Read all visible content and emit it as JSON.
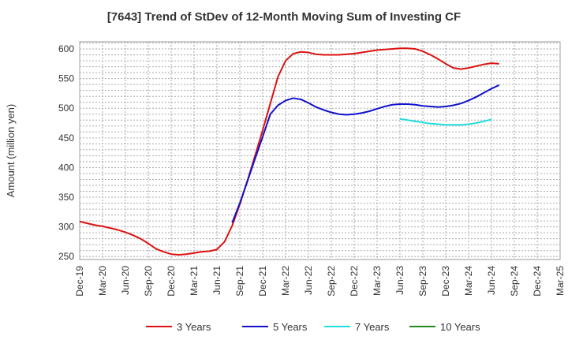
{
  "chart_data": {
    "type": "line",
    "title": "[7643]  Trend of StDev of 12-Month Moving Sum of Investing CF",
    "xlabel": "",
    "ylabel": "Amount (million yen)",
    "ylim": [
      245,
      612
    ],
    "yticks": [
      250,
      300,
      350,
      400,
      450,
      500,
      550,
      600
    ],
    "xlim": [
      "2019-12",
      "2025-03"
    ],
    "xticks": [
      "Dec-19",
      "Mar-20",
      "Jun-20",
      "Sep-20",
      "Dec-20",
      "Mar-21",
      "Jun-21",
      "Sep-21",
      "Dec-21",
      "Mar-22",
      "Jun-22",
      "Sep-22",
      "Dec-22",
      "Mar-23",
      "Jun-23",
      "Sep-23",
      "Dec-23",
      "Mar-24",
      "Jun-24",
      "Sep-24",
      "Dec-24",
      "Mar-25"
    ],
    "grid": true,
    "legend_position": "bottom",
    "series": [
      {
        "name": "3 Years",
        "color": "#dd1111",
        "points": [
          [
            "2019-12",
            309
          ],
          [
            "2020-01",
            306
          ],
          [
            "2020-02",
            303
          ],
          [
            "2020-03",
            301
          ],
          [
            "2020-04",
            298
          ],
          [
            "2020-05",
            295
          ],
          [
            "2020-06",
            291
          ],
          [
            "2020-07",
            286
          ],
          [
            "2020-08",
            280
          ],
          [
            "2020-09",
            272
          ],
          [
            "2020-10",
            263
          ],
          [
            "2020-11",
            258
          ],
          [
            "2020-12",
            254
          ],
          [
            "2021-01",
            253
          ],
          [
            "2021-02",
            254
          ],
          [
            "2021-03",
            256
          ],
          [
            "2021-04",
            258
          ],
          [
            "2021-05",
            259
          ],
          [
            "2021-06",
            262
          ],
          [
            "2021-07",
            275
          ],
          [
            "2021-08",
            302
          ],
          [
            "2021-09",
            338
          ],
          [
            "2021-10",
            378
          ],
          [
            "2021-11",
            420
          ],
          [
            "2021-12",
            463
          ],
          [
            "2022-01",
            508
          ],
          [
            "2022-02",
            553
          ],
          [
            "2022-03",
            580
          ],
          [
            "2022-04",
            592
          ],
          [
            "2022-05",
            595
          ],
          [
            "2022-06",
            594
          ],
          [
            "2022-07",
            591
          ],
          [
            "2022-08",
            590
          ],
          [
            "2022-09",
            590
          ],
          [
            "2022-10",
            590
          ],
          [
            "2022-11",
            591
          ],
          [
            "2022-12",
            592
          ],
          [
            "2023-01",
            594
          ],
          [
            "2023-02",
            596
          ],
          [
            "2023-03",
            598
          ],
          [
            "2023-04",
            599
          ],
          [
            "2023-05",
            600
          ],
          [
            "2023-06",
            601
          ],
          [
            "2023-07",
            601
          ],
          [
            "2023-08",
            600
          ],
          [
            "2023-09",
            596
          ],
          [
            "2023-10",
            590
          ],
          [
            "2023-11",
            583
          ],
          [
            "2023-12",
            575
          ],
          [
            "2024-01",
            568
          ],
          [
            "2024-02",
            566
          ],
          [
            "2024-03",
            568
          ],
          [
            "2024-04",
            571
          ],
          [
            "2024-05",
            574
          ],
          [
            "2024-06",
            576
          ],
          [
            "2024-07",
            575
          ]
        ]
      },
      {
        "name": "5 Years",
        "color": "#1111cc",
        "points": [
          [
            "2021-08",
            307
          ],
          [
            "2021-09",
            340
          ],
          [
            "2021-10",
            377
          ],
          [
            "2021-11",
            415
          ],
          [
            "2021-12",
            452
          ],
          [
            "2022-01",
            490
          ],
          [
            "2022-02",
            505
          ],
          [
            "2022-03",
            513
          ],
          [
            "2022-04",
            517
          ],
          [
            "2022-05",
            515
          ],
          [
            "2022-06",
            509
          ],
          [
            "2022-07",
            502
          ],
          [
            "2022-08",
            497
          ],
          [
            "2022-09",
            493
          ],
          [
            "2022-10",
            490
          ],
          [
            "2022-11",
            489
          ],
          [
            "2022-12",
            490
          ],
          [
            "2023-01",
            492
          ],
          [
            "2023-02",
            495
          ],
          [
            "2023-03",
            499
          ],
          [
            "2023-04",
            503
          ],
          [
            "2023-05",
            506
          ],
          [
            "2023-06",
            507
          ],
          [
            "2023-07",
            507
          ],
          [
            "2023-08",
            506
          ],
          [
            "2023-09",
            504
          ],
          [
            "2023-10",
            503
          ],
          [
            "2023-11",
            502
          ],
          [
            "2023-12",
            503
          ],
          [
            "2024-01",
            505
          ],
          [
            "2024-02",
            508
          ],
          [
            "2024-03",
            513
          ],
          [
            "2024-04",
            519
          ],
          [
            "2024-05",
            526
          ],
          [
            "2024-06",
            533
          ],
          [
            "2024-07",
            539
          ]
        ]
      },
      {
        "name": "7 Years",
        "color": "#22dddd",
        "points": [
          [
            "2023-06",
            482
          ],
          [
            "2023-07",
            480
          ],
          [
            "2023-08",
            478
          ],
          [
            "2023-09",
            476
          ],
          [
            "2023-10",
            474
          ],
          [
            "2023-11",
            473
          ],
          [
            "2023-12",
            472
          ],
          [
            "2024-01",
            472
          ],
          [
            "2024-02",
            472
          ],
          [
            "2024-03",
            473
          ],
          [
            "2024-04",
            475
          ],
          [
            "2024-05",
            478
          ],
          [
            "2024-06",
            481
          ]
        ]
      },
      {
        "name": "10 Years",
        "color": "#228822",
        "points": []
      }
    ]
  }
}
